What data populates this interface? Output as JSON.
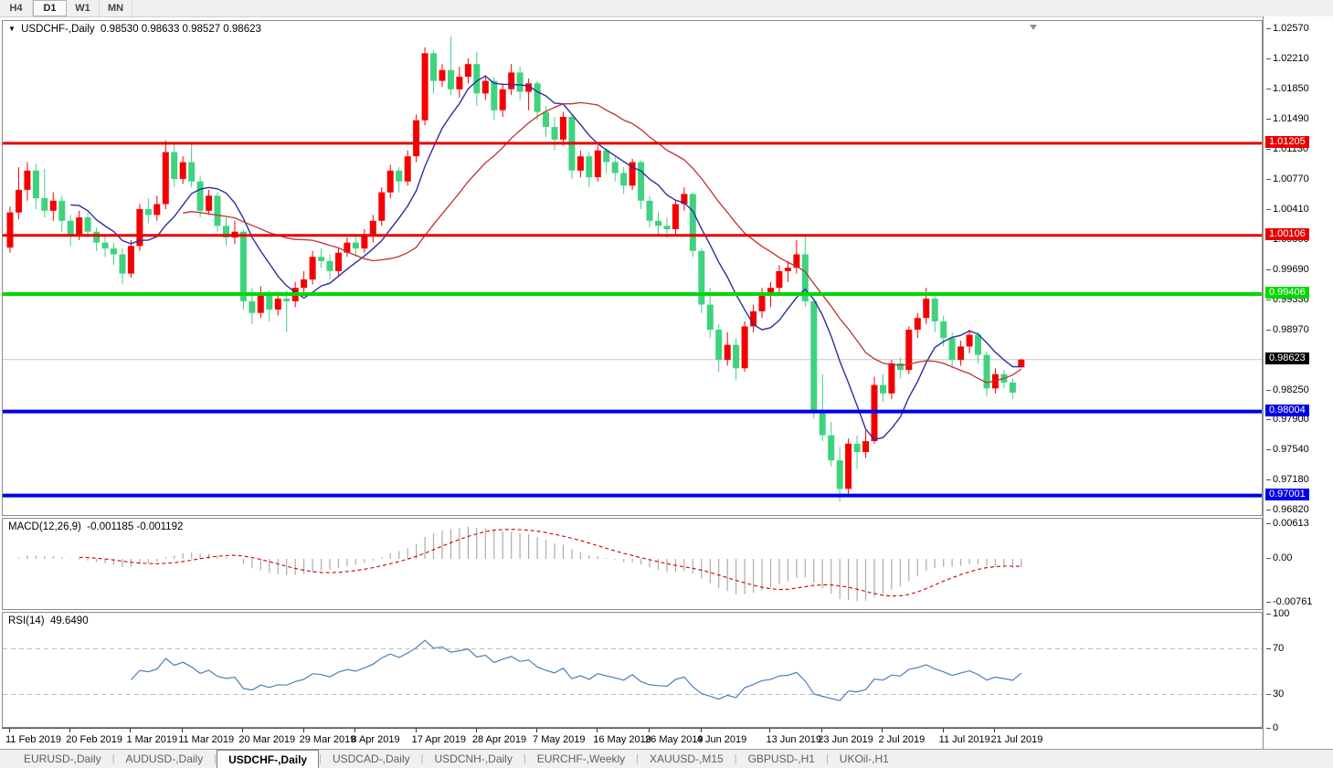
{
  "toolbar": {
    "timeframes": [
      {
        "label": "H4",
        "active": false
      },
      {
        "label": "D1",
        "active": true
      },
      {
        "label": "W1",
        "active": false
      },
      {
        "label": "MN",
        "active": false
      }
    ]
  },
  "header": {
    "symbol_label": "USDCHF-,Daily",
    "ohlc_text": "0.98530 0.98633 0.98527 0.98623"
  },
  "chart_data": {
    "type": "candlestick",
    "symbol": "USDCHF-",
    "timeframe": "Daily",
    "colors": {
      "candle_up": "#F40000",
      "candle_down": "#3FD27F",
      "ma_fast": "#2E2EA0",
      "ma_slow": "#C03030",
      "macd_hist": "#ABABAB",
      "macd_signal": "#CC0000",
      "rsi_line": "#4A7EBB",
      "hline_red": "#E60000",
      "hline_green": "#00D800",
      "hline_blue": "#0000E8",
      "current_price_line": "#C8C8C8"
    },
    "candles": [
      [
        "11 Feb",
        0.9996,
        1.0045,
        0.999,
        1.0038
      ],
      [
        "12 Feb",
        1.0038,
        1.0092,
        1.003,
        1.0065
      ],
      [
        "13 Feb",
        1.0065,
        1.0098,
        1.0052,
        1.0088
      ],
      [
        "14 Feb",
        1.0088,
        1.0096,
        1.0042,
        1.0055
      ],
      [
        "15 Feb",
        1.0055,
        1.009,
        1.0032,
        1.004
      ],
      [
        "18 Feb",
        1.004,
        1.0062,
        1.0028,
        1.0052
      ],
      [
        "19 Feb",
        1.0052,
        1.0058,
        1.0015,
        1.0028
      ],
      [
        "20 Feb",
        1.0028,
        1.0035,
        0.9998,
        1.001
      ],
      [
        "21 Feb",
        1.001,
        1.004,
        1.0005,
        1.0032
      ],
      [
        "22 Feb",
        1.0032,
        1.0038,
        1.0008,
        1.0015
      ],
      [
        "25 Feb",
        1.0015,
        1.002,
        0.9992,
        1.0002
      ],
      [
        "26 Feb",
        1.0002,
        1.001,
        0.9985,
        0.9995
      ],
      [
        "27 Feb",
        0.9995,
        1.0002,
        0.9975,
        0.9988
      ],
      [
        "28 Feb",
        0.9988,
        0.9995,
        0.9952,
        0.9965
      ],
      [
        "1 Mar",
        0.9965,
        1.0005,
        0.996,
        0.9998
      ],
      [
        "4 Mar",
        0.9998,
        1.0048,
        0.9992,
        1.0042
      ],
      [
        "5 Mar",
        1.0042,
        1.0055,
        1.0025,
        1.0035
      ],
      [
        "6 Mar",
        1.0035,
        1.0058,
        1.0028,
        1.0048
      ],
      [
        "7 Mar",
        1.0048,
        1.0124,
        1.0042,
        1.011
      ],
      [
        "8 Mar",
        1.011,
        1.0122,
        1.0068,
        1.0078
      ],
      [
        "11 Mar",
        1.0078,
        1.0105,
        1.0072,
        1.0098
      ],
      [
        "12 Mar",
        1.0098,
        1.012,
        1.0068,
        1.0075
      ],
      [
        "13 Mar",
        1.0075,
        1.0082,
        1.0032,
        1.004
      ],
      [
        "14 Mar",
        1.004,
        1.0065,
        1.0035,
        1.0058
      ],
      [
        "15 Mar",
        1.0058,
        1.0062,
        1.0015,
        1.0022
      ],
      [
        "18 Mar",
        1.0022,
        1.0032,
        0.9998,
        1.0008
      ],
      [
        "19 Mar",
        1.0008,
        1.0028,
        1.0,
        1.0015
      ],
      [
        "20 Mar",
        1.0015,
        1.0018,
        0.9922,
        0.9932
      ],
      [
        "21 Mar",
        0.9932,
        0.9948,
        0.9905,
        0.9918
      ],
      [
        "22 Mar",
        0.9918,
        0.995,
        0.9912,
        0.9942
      ],
      [
        "25 Mar",
        0.9942,
        0.9945,
        0.9908,
        0.9922
      ],
      [
        "26 Mar",
        0.9922,
        0.9942,
        0.9915,
        0.9935
      ],
      [
        "27 Mar",
        0.9935,
        0.9945,
        0.9895,
        0.9932
      ],
      [
        "28 Mar",
        0.9932,
        0.9955,
        0.9925,
        0.9948
      ],
      [
        "29 Mar",
        0.9948,
        0.9968,
        0.994,
        0.9958
      ],
      [
        "1 Apr",
        0.9958,
        0.9992,
        0.9952,
        0.9985
      ],
      [
        "2 Apr",
        0.9985,
        0.9995,
        0.9972,
        0.998
      ],
      [
        "3 Apr",
        0.998,
        0.9988,
        0.9958,
        0.9968
      ],
      [
        "4 Apr",
        0.9968,
        0.9995,
        0.9962,
        0.999
      ],
      [
        "5 Apr",
        0.999,
        1.0008,
        0.9985,
        1.0002
      ],
      [
        "8 Apr",
        1.0002,
        1.001,
        0.9985,
        0.9995
      ],
      [
        "9 Apr",
        0.9995,
        1.0018,
        0.999,
        1.001
      ],
      [
        "10 Apr",
        1.001,
        1.0035,
        1.0002,
        1.0028
      ],
      [
        "11 Apr",
        1.0028,
        1.0068,
        1.0022,
        1.0062
      ],
      [
        "12 Apr",
        1.0062,
        1.0095,
        1.0055,
        1.0088
      ],
      [
        "15 Apr",
        1.0088,
        1.0092,
        1.0062,
        1.0075
      ],
      [
        "16 Apr",
        1.0075,
        1.0112,
        1.007,
        1.0105
      ],
      [
        "17 Apr",
        1.0105,
        1.0155,
        1.0098,
        1.0148
      ],
      [
        "18 Apr",
        1.0148,
        1.0235,
        1.0142,
        1.0228
      ],
      [
        "19 Apr",
        1.0228,
        1.0232,
        1.018,
        1.0195
      ],
      [
        "22 Apr",
        1.0195,
        1.0215,
        1.0188,
        1.0208
      ],
      [
        "23 Apr",
        1.0208,
        1.0248,
        1.0178,
        1.0185
      ],
      [
        "24 Apr",
        1.0185,
        1.0212,
        1.0175,
        1.02
      ],
      [
        "25 Apr",
        1.02,
        1.0222,
        1.0192,
        1.0215
      ],
      [
        "26 Apr",
        1.0215,
        1.023,
        1.0165,
        1.018
      ],
      [
        "29 Apr",
        1.018,
        1.0202,
        1.0172,
        1.0195
      ],
      [
        "30 Apr",
        1.0195,
        1.02,
        1.0148,
        1.016
      ],
      [
        "1 May",
        1.016,
        1.0192,
        1.0152,
        1.0185
      ],
      [
        "2 May",
        1.0185,
        1.0215,
        1.0178,
        1.0205
      ],
      [
        "3 May",
        1.0205,
        1.0212,
        1.0172,
        1.0182
      ],
      [
        "6 May",
        1.0182,
        1.0198,
        1.016,
        1.0192
      ],
      [
        "7 May",
        1.0192,
        1.0195,
        1.0148,
        1.0158
      ],
      [
        "8 May",
        1.0158,
        1.0165,
        1.0128,
        1.014
      ],
      [
        "9 May",
        1.014,
        1.0152,
        1.0112,
        1.0125
      ],
      [
        "10 May",
        1.0125,
        1.0158,
        1.0118,
        1.0152
      ],
      [
        "13 May",
        1.0152,
        1.0155,
        1.0078,
        1.0088
      ],
      [
        "14 May",
        1.0088,
        1.0112,
        1.008,
        1.0105
      ],
      [
        "15 May",
        1.0105,
        1.011,
        1.0068,
        1.008
      ],
      [
        "16 May",
        1.008,
        1.0118,
        1.0075,
        1.0112
      ],
      [
        "17 May",
        1.0112,
        1.0115,
        1.0085,
        1.0098
      ],
      [
        "20 May",
        1.0098,
        1.0105,
        1.0075,
        1.0085
      ],
      [
        "21 May",
        1.0085,
        1.0092,
        1.006,
        1.007
      ],
      [
        "22 May",
        1.007,
        1.0102,
        1.0065,
        1.0098
      ],
      [
        "23 May",
        1.0098,
        1.01,
        1.0042,
        1.0052
      ],
      [
        "24 May",
        1.0052,
        1.0058,
        1.002,
        1.0028
      ],
      [
        "27 May",
        1.0028,
        1.0038,
        1.0012,
        1.0022
      ],
      [
        "28 May",
        1.0022,
        1.0032,
        1.0008,
        1.0018
      ],
      [
        "29 May",
        1.0018,
        1.0052,
        1.0012,
        1.0048
      ],
      [
        "30 May",
        1.0048,
        1.0068,
        1.004,
        1.006
      ],
      [
        "31 May",
        1.006,
        1.0062,
        0.9985,
        0.9992
      ],
      [
        "3 Jun",
        0.9992,
        0.9995,
        0.9918,
        0.9928
      ],
      [
        "4 Jun",
        0.9928,
        0.9948,
        0.9888,
        0.9898
      ],
      [
        "5 Jun",
        0.9898,
        0.9905,
        0.9848,
        0.9862
      ],
      [
        "6 Jun",
        0.9862,
        0.9895,
        0.9855,
        0.988
      ],
      [
        "7 Jun",
        0.988,
        0.9888,
        0.9838,
        0.9852
      ],
      [
        "10 Jun",
        0.9852,
        0.9908,
        0.9848,
        0.9902
      ],
      [
        "11 Jun",
        0.9902,
        0.9928,
        0.9895,
        0.992
      ],
      [
        "12 Jun",
        0.992,
        0.9948,
        0.9912,
        0.9942
      ],
      [
        "13 Jun",
        0.9942,
        0.9955,
        0.9925,
        0.9948
      ],
      [
        "14 Jun",
        0.9948,
        0.9975,
        0.994,
        0.9968
      ],
      [
        "17 Jun",
        0.9968,
        0.998,
        0.9955,
        0.9972
      ],
      [
        "18 Jun",
        0.9972,
        1.0005,
        0.9965,
        0.9988
      ],
      [
        "19 Jun",
        0.9988,
        1.0012,
        0.9925,
        0.9932
      ],
      [
        "20 Jun",
        0.9932,
        0.9935,
        0.9792,
        0.9802
      ],
      [
        "21 Jun",
        0.9802,
        0.9845,
        0.9765,
        0.9772
      ],
      [
        "24 Jun",
        0.9772,
        0.9788,
        0.9735,
        0.9742
      ],
      [
        "25 Jun",
        0.9742,
        0.9758,
        0.9693,
        0.9708
      ],
      [
        "26 Jun",
        0.9708,
        0.9768,
        0.9702,
        0.9762
      ],
      [
        "27 Jun",
        0.9762,
        0.9772,
        0.9732,
        0.9752
      ],
      [
        "28 Jun",
        0.9752,
        0.9778,
        0.9745,
        0.9765
      ],
      [
        "1 Jul",
        0.9765,
        0.9842,
        0.9762,
        0.9832
      ],
      [
        "2 Jul",
        0.9832,
        0.9845,
        0.9812,
        0.9822
      ],
      [
        "3 Jul",
        0.9822,
        0.9862,
        0.9815,
        0.9858
      ],
      [
        "4 Jul",
        0.9858,
        0.9865,
        0.984,
        0.985
      ],
      [
        "5 Jul",
        0.985,
        0.9902,
        0.9845,
        0.9898
      ],
      [
        "8 Jul",
        0.9898,
        0.9918,
        0.9888,
        0.9912
      ],
      [
        "9 Jul",
        0.9912,
        0.9948,
        0.9905,
        0.9935
      ],
      [
        "10 Jul",
        0.9935,
        0.9942,
        0.9895,
        0.9908
      ],
      [
        "11 Jul",
        0.9908,
        0.9915,
        0.9878,
        0.9888
      ],
      [
        "12 Jul",
        0.9888,
        0.9895,
        0.9852,
        0.9862
      ],
      [
        "15 Jul",
        0.9862,
        0.9885,
        0.9855,
        0.9878
      ],
      [
        "16 Jul",
        0.9878,
        0.9898,
        0.987,
        0.9892
      ],
      [
        "17 Jul",
        0.9892,
        0.9895,
        0.9858,
        0.9868
      ],
      [
        "18 Jul",
        0.9868,
        0.9872,
        0.9818,
        0.9828
      ],
      [
        "19 Jul",
        0.9828,
        0.9852,
        0.9822,
        0.9845
      ],
      [
        "22 Jul",
        0.9845,
        0.985,
        0.9828,
        0.9835
      ],
      [
        "23 Jul",
        0.9835,
        0.984,
        0.9815,
        0.9823
      ],
      [
        "24 Jul",
        0.9853,
        0.98633,
        0.98527,
        0.98623
      ]
    ],
    "current_price": 0.98623,
    "h_lines": [
      {
        "price": 1.01205,
        "label": "1.01205",
        "color": "#E60000",
        "width": 3
      },
      {
        "price": 1.00106,
        "label": "1.00106",
        "color": "#E60000",
        "width": 3
      },
      {
        "price": 0.99406,
        "label": "0.99406",
        "color": "#00D800",
        "width": 4
      },
      {
        "price": 0.98004,
        "label": "0.98004",
        "color": "#0000E8",
        "width": 4
      },
      {
        "price": 0.97001,
        "label": "0.97001",
        "color": "#0000E8",
        "width": 4
      }
    ],
    "current_price_badge": {
      "label": "0.98623",
      "color": "#000000"
    },
    "price_axis_ticks": [
      "1.02570",
      "1.02210",
      "1.01850",
      "1.01490",
      "1.01130",
      "1.00770",
      "1.00410",
      "1.00050",
      "0.99690",
      "0.99330",
      "0.98970",
      "0.98250",
      "0.97900",
      "0.97540",
      "0.97180",
      "0.96820"
    ],
    "moving_averages": [
      {
        "period": 8,
        "color": "#2E2EA0"
      },
      {
        "period": 21,
        "color": "#C03030"
      }
    ],
    "x_axis_labels": [
      {
        "label": "11 Feb 2019",
        "candle_index": 0
      },
      {
        "label": "20 Feb 2019",
        "candle_index": 7
      },
      {
        "label": "1 Mar 2019",
        "candle_index": 14
      },
      {
        "label": "11 Mar 2019",
        "candle_index": 20
      },
      {
        "label": "20 Mar 2019",
        "candle_index": 27
      },
      {
        "label": "29 Mar 2019",
        "candle_index": 34
      },
      {
        "label": "8 Apr 2019",
        "candle_index": 40
      },
      {
        "label": "17 Apr 2019",
        "candle_index": 47
      },
      {
        "label": "28 Apr 2019",
        "candle_index": 54
      },
      {
        "label": "7 May 2019",
        "candle_index": 61
      },
      {
        "label": "16 May 2019",
        "candle_index": 68
      },
      {
        "label": "26 May 2019",
        "candle_index": 74
      },
      {
        "label": "4 Jun 2019",
        "candle_index": 80
      },
      {
        "label": "13 Jun 2019",
        "candle_index": 88
      },
      {
        "label": "23 Jun 2019",
        "candle_index": 94
      },
      {
        "label": "2 Jul 2019",
        "candle_index": 101
      },
      {
        "label": "11 Jul 2019",
        "candle_index": 108
      },
      {
        "label": "21 Jul 2019",
        "candle_index": 114
      }
    ],
    "macd": {
      "label": "MACD(12,26,9)",
      "values_text": "-0.001185 -0.001192",
      "fast": 12,
      "slow": 26,
      "signal": 9,
      "axis_ticks": [
        {
          "label": "0.00613",
          "value": 0.00613
        },
        {
          "label": "0.00",
          "value": 0
        },
        {
          "label": "-0.00761",
          "value": -0.00761
        }
      ]
    },
    "rsi": {
      "label": "RSI(14)",
      "value_text": "49.6490",
      "period": 14,
      "levels": [
        70,
        30
      ],
      "axis_ticks": [
        {
          "label": "100",
          "value": 100
        },
        {
          "label": "70",
          "value": 70
        },
        {
          "label": "30",
          "value": 30
        },
        {
          "label": "0",
          "value": 0
        }
      ]
    }
  },
  "bottom_tabs": [
    {
      "label": "EURUSD-,Daily",
      "active": false
    },
    {
      "label": "AUDUSD-,Daily",
      "active": false
    },
    {
      "label": "USDCHF-,Daily",
      "active": true
    },
    {
      "label": "USDCAD-,Daily",
      "active": false
    },
    {
      "label": "USDCNH-,Daily",
      "active": false
    },
    {
      "label": "EURCHF-,Weekly",
      "active": false
    },
    {
      "label": "XAUUSD-,M15",
      "active": false
    },
    {
      "label": "GBPUSD-,H1",
      "active": false
    },
    {
      "label": "UKOil-,H1",
      "active": false
    }
  ]
}
